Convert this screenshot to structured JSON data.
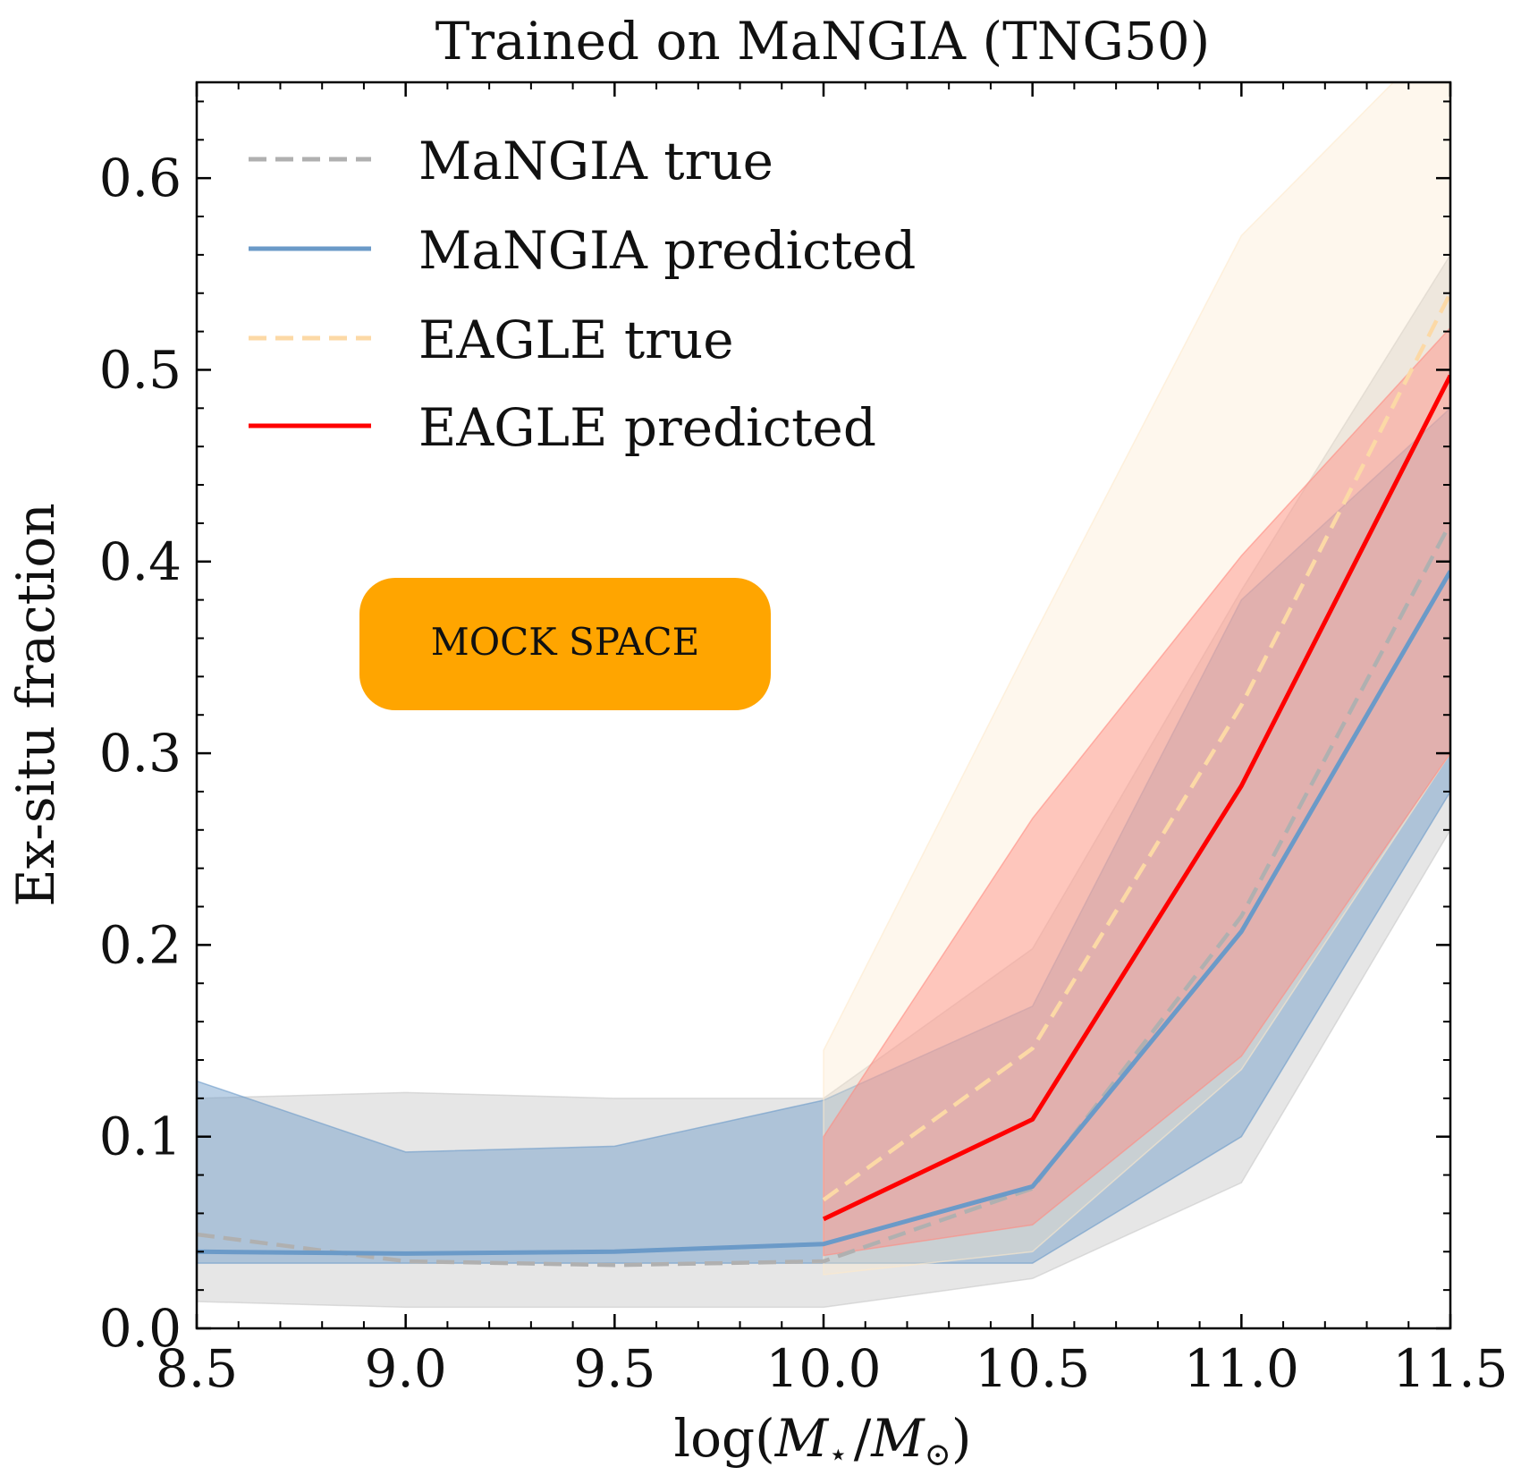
{
  "chart_data": {
    "type": "line",
    "title": "Trained on MaNGIA (TNG50)",
    "xlabel": "log(M_⋆ / M_⊙)",
    "xlabel_parts": {
      "prefix": "log(",
      "m1": "M",
      "sub1": "⋆",
      "slash": "/",
      "m2": "M",
      "sub2": "⊙",
      "suffix": ")"
    },
    "ylabel": "Ex-situ fraction",
    "xlim": [
      8.5,
      11.5
    ],
    "ylim": [
      0.0,
      0.65
    ],
    "xticks": [
      8.5,
      9.0,
      9.5,
      10.0,
      10.5,
      11.0,
      11.5
    ],
    "xtick_labels": [
      "8.5",
      "9.0",
      "9.5",
      "10.0",
      "10.5",
      "11.0",
      "11.5"
    ],
    "yticks": [
      0.0,
      0.1,
      0.2,
      0.3,
      0.4,
      0.5,
      0.6
    ],
    "ytick_labels": [
      "0.0",
      "0.1",
      "0.2",
      "0.3",
      "0.4",
      "0.5",
      "0.6"
    ],
    "legend_position": "top-left",
    "annotation": {
      "text": "MOCK SPACE",
      "color": "#ffa500"
    },
    "series": [
      {
        "name": "MaNGIA true",
        "color": "#b0b0b0",
        "style": "dashed",
        "x": [
          8.5,
          9.0,
          9.5,
          10.0,
          10.5,
          11.0,
          11.5
        ],
        "y": [
          0.049,
          0.035,
          0.033,
          0.035,
          0.073,
          0.215,
          0.42
        ],
        "band_low": [
          0.014,
          0.011,
          0.011,
          0.011,
          0.026,
          0.076,
          0.26
        ],
        "band_high": [
          0.12,
          0.123,
          0.12,
          0.12,
          0.198,
          0.385,
          0.56
        ],
        "band_color": "#c8c8c8"
      },
      {
        "name": "MaNGIA predicted",
        "color": "#6b9ac8",
        "style": "solid",
        "x": [
          8.5,
          9.0,
          9.5,
          10.0,
          10.5,
          11.0,
          11.5
        ],
        "y": [
          0.04,
          0.039,
          0.04,
          0.044,
          0.074,
          0.207,
          0.395
        ],
        "band_low": [
          0.034,
          0.034,
          0.034,
          0.034,
          0.034,
          0.1,
          0.28
        ],
        "band_high": [
          0.129,
          0.092,
          0.095,
          0.119,
          0.168,
          0.38,
          0.48
        ],
        "band_color": "#6b9ac8"
      },
      {
        "name": "EAGLE true",
        "color": "#fcd9a6",
        "style": "dashed",
        "x": [
          10.0,
          10.5,
          11.0,
          11.5
        ],
        "y": [
          0.067,
          0.146,
          0.325,
          0.54
        ],
        "band_low": [
          0.028,
          0.04,
          0.135,
          0.3
        ],
        "band_high": [
          0.145,
          0.36,
          0.57,
          0.68
        ],
        "band_color": "#fde9cc"
      },
      {
        "name": "EAGLE predicted",
        "color": "#ff0000",
        "style": "solid",
        "x": [
          10.0,
          10.5,
          11.0,
          11.5
        ],
        "y": [
          0.057,
          0.109,
          0.283,
          0.497
        ],
        "band_low": [
          0.038,
          0.054,
          0.142,
          0.3
        ],
        "band_high": [
          0.1,
          0.266,
          0.403,
          0.522
        ],
        "band_color": "#ff8a80"
      }
    ]
  }
}
